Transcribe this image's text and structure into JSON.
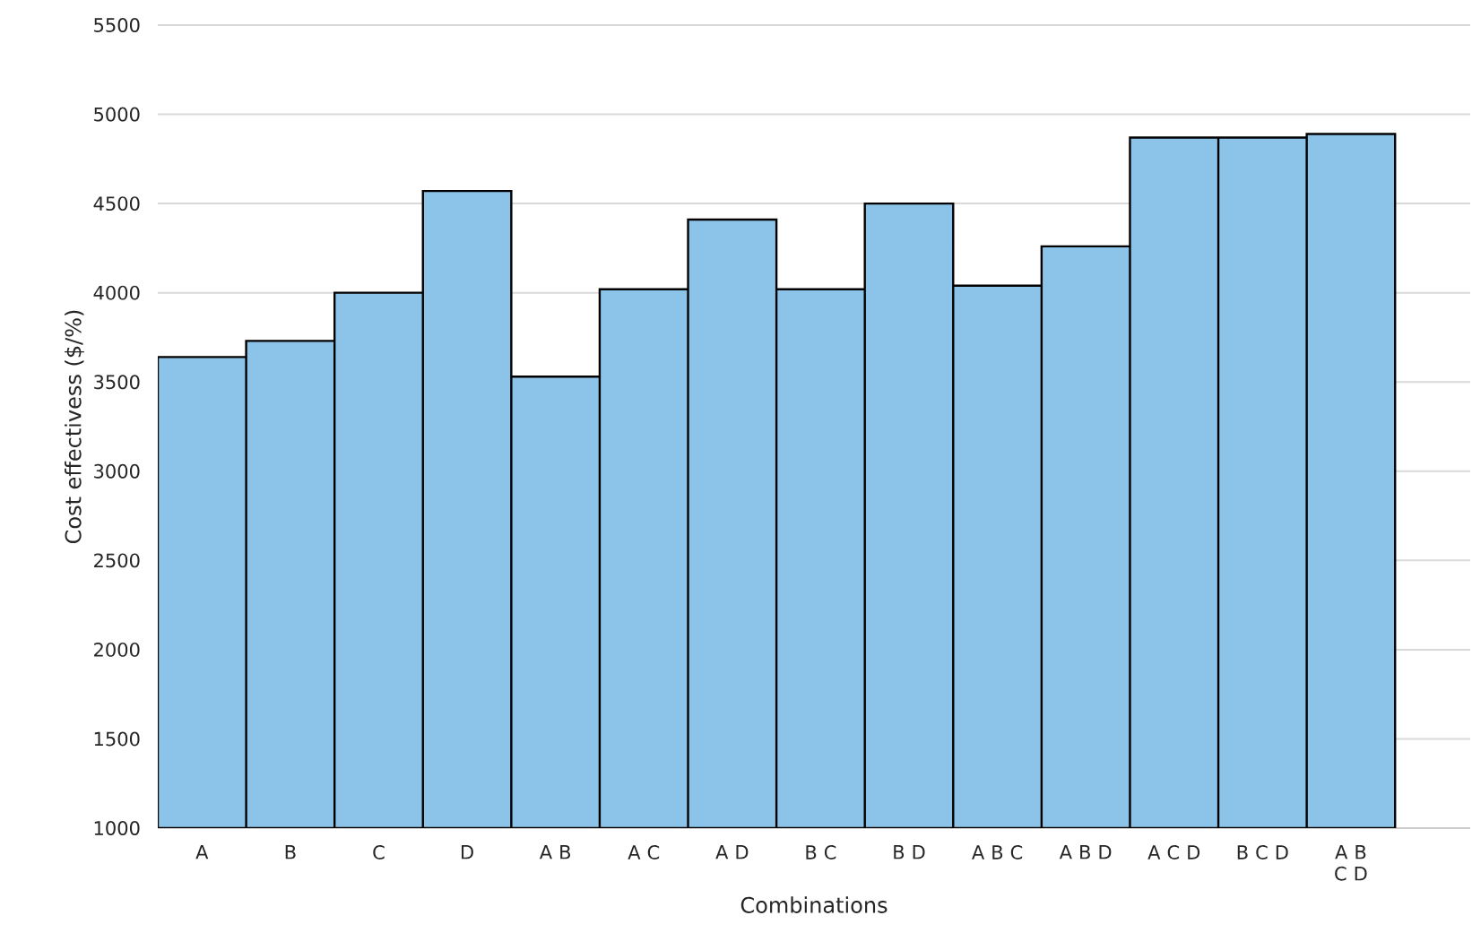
{
  "chart_data": {
    "type": "bar",
    "xlabel": "Combinations",
    "ylabel": "Cost effectivess ($/%)",
    "categories": [
      "A",
      "B",
      "C",
      "D",
      "A B",
      "A C",
      "A D",
      "B C",
      "B D",
      "A B C",
      "A B D",
      "A C D",
      "B C D",
      "A B C D"
    ],
    "values": [
      3640,
      3730,
      4000,
      4570,
      3530,
      4020,
      4410,
      4020,
      4500,
      4040,
      4260,
      4870,
      4870,
      4890
    ],
    "color": "#8cc4e9",
    "ylim": [
      1000,
      5500
    ],
    "yticks": [
      1000,
      1500,
      2000,
      2500,
      3000,
      3500,
      4000,
      4500,
      5000,
      5500
    ],
    "grid": "y"
  }
}
